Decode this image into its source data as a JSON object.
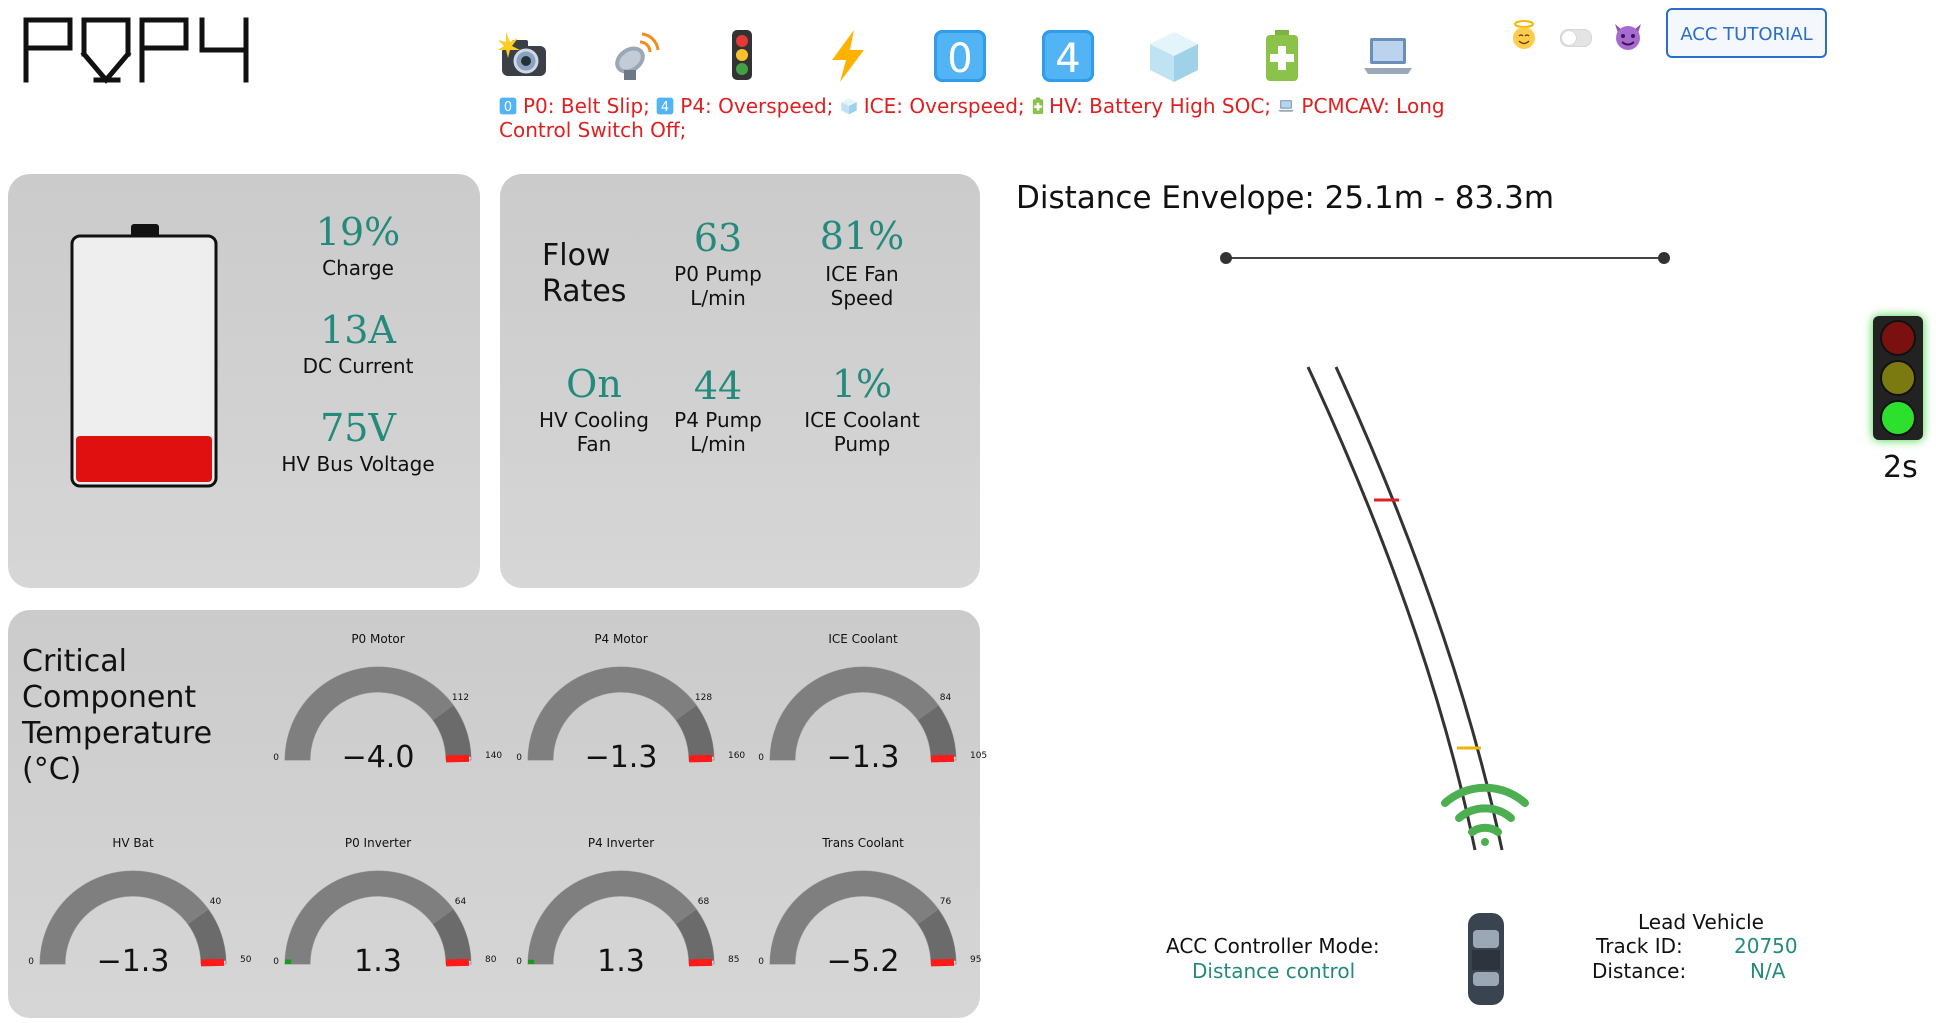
{
  "logo": {
    "text": "P0P4"
  },
  "toolbar": {
    "items": [
      {
        "name": "camera-flash-icon"
      },
      {
        "name": "satellite-dish-icon"
      },
      {
        "name": "traffic-light-icon"
      },
      {
        "name": "lightning-icon"
      },
      {
        "name": "keycap-zero-icon",
        "glyph": "0"
      },
      {
        "name": "keycap-four-icon",
        "glyph": "4"
      },
      {
        "name": "ice-cube-icon"
      },
      {
        "name": "battery-plus-icon"
      },
      {
        "name": "laptop-icon"
      }
    ]
  },
  "faults": {
    "p0_label": "P0: Belt Slip;",
    "p4_label": "P4: Overspeed;",
    "ice_label": "ICE: Overspeed;",
    "hv_label": "HV: Battery High SOC;",
    "pcm_label": "PCMCAV: Long Control Switch Off;",
    "color": "#e02020"
  },
  "header": {
    "acc_tutorial_label": "ACC TUTORIAL",
    "mode_toggle_on": false
  },
  "battery": {
    "charge_value": "19%",
    "charge_label": "Charge",
    "charge_fraction": 0.19,
    "current_value": "13A",
    "current_label": "DC Current",
    "voltage_value": "75V",
    "voltage_label": "HV Bus Voltage",
    "fill_color": "#e01010"
  },
  "flow": {
    "title_line1": "Flow",
    "title_line2": "Rates",
    "p0_pump_value": "63",
    "p0_pump_label1": "P0 Pump",
    "p0_pump_label2": "L/min",
    "ice_fan_value": "81%",
    "ice_fan_label1": "ICE Fan",
    "ice_fan_label2": "Speed",
    "hv_fan_value": "On",
    "hv_fan_label1": "HV Cooling",
    "hv_fan_label2": "Fan",
    "p4_pump_value": "44",
    "p4_pump_label1": "P4 Pump",
    "p4_pump_label2": "L/min",
    "ice_pump_value": "1%",
    "ice_pump_label1": "ICE Coolant",
    "ice_pump_label2": "Pump"
  },
  "temps": {
    "title_l1": "Critical",
    "title_l2": "Component",
    "title_l3": "Temperature",
    "title_l4": "(°C)",
    "gauges": [
      {
        "title": "P0 Motor",
        "value": "−4.0",
        "min": "0",
        "warn": "112",
        "max": "140",
        "fraction": 0
      },
      {
        "title": "P4 Motor",
        "value": "−1.3",
        "min": "0",
        "warn": "128",
        "max": "160",
        "fraction": 0
      },
      {
        "title": "ICE Coolant",
        "value": "−1.3",
        "min": "0",
        "warn": "84",
        "max": "105",
        "fraction": 0
      },
      {
        "title": "HV Bat",
        "value": "−1.3",
        "min": "0",
        "warn": "40",
        "max": "50",
        "fraction": 0
      },
      {
        "title": "P0 Inverter",
        "value": "1.3",
        "min": "0",
        "warn": "64",
        "max": "80",
        "fraction": 0.016
      },
      {
        "title": "P4 Inverter",
        "value": "1.3",
        "min": "0",
        "warn": "68",
        "max": "85",
        "fraction": 0.015
      },
      {
        "title": "Trans Coolant",
        "value": "−5.2",
        "min": "0",
        "warn": "76",
        "max": "95",
        "fraction": 0
      }
    ]
  },
  "acc": {
    "envelope_title": "Distance Envelope: 25.1m - 83.3m",
    "mode_label": "ACC Controller Mode:",
    "mode_value": "Distance control",
    "lead_title": "Lead Vehicle",
    "track_label": "Track ID:",
    "track_value": "20750",
    "distance_label": "Distance:",
    "distance_value": "N/A",
    "traffic_light_state": "green",
    "traffic_light_timer": "2s"
  }
}
